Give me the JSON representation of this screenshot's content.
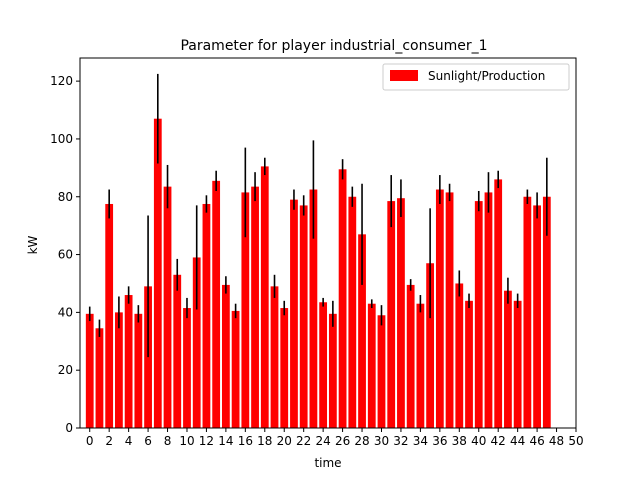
{
  "chart_data": {
    "type": "bar",
    "title": "Parameter for player industrial_consumer_1",
    "xlabel": "time",
    "ylabel": "kW",
    "xlim": [
      -1,
      50
    ],
    "ylim": [
      0,
      128
    ],
    "xticks": [
      0,
      2,
      4,
      6,
      8,
      10,
      12,
      14,
      16,
      18,
      20,
      22,
      24,
      26,
      28,
      30,
      32,
      34,
      36,
      38,
      40,
      42,
      44,
      46,
      48,
      50
    ],
    "yticks": [
      0,
      20,
      40,
      60,
      80,
      100,
      120
    ],
    "grid": false,
    "legend_position": "top-right",
    "colors": {
      "bar": "#ff0000",
      "error": "#000000"
    },
    "series": [
      {
        "name": "Sunlight/Production",
        "x": [
          0,
          1,
          2,
          3,
          4,
          5,
          6,
          7,
          8,
          9,
          10,
          11,
          12,
          13,
          14,
          15,
          16,
          17,
          18,
          19,
          20,
          21,
          22,
          23,
          24,
          25,
          26,
          27,
          28,
          29,
          30,
          31,
          32,
          33,
          34,
          35,
          36,
          37,
          38,
          39,
          40,
          41,
          42,
          43,
          44,
          45,
          46,
          47
        ],
        "values": [
          39.5,
          34.5,
          77.5,
          40,
          46,
          39.5,
          49,
          107,
          83.5,
          53,
          41.5,
          59,
          77.5,
          85.5,
          49.5,
          40.5,
          81.5,
          83.5,
          90.5,
          49,
          41.5,
          79,
          77,
          82.5,
          43.5,
          39.5,
          89.5,
          80,
          67,
          43,
          39,
          78.5,
          79.5,
          49.5,
          43,
          57,
          82.5,
          81.5,
          50,
          44,
          78.5,
          81.5,
          86,
          47.5,
          44,
          80,
          77,
          80
        ],
        "errors": [
          2.5,
          3,
          5,
          5.5,
          3,
          3,
          24.5,
          15.5,
          7.5,
          5.5,
          3.5,
          18,
          3,
          3.5,
          3,
          2.5,
          15.5,
          5,
          3,
          4,
          2.5,
          3.5,
          3.5,
          17,
          1.5,
          4.5,
          3.5,
          3.5,
          17.5,
          1.5,
          3.5,
          9,
          6.5,
          2,
          3,
          19,
          5,
          3,
          4.5,
          2.5,
          3.5,
          7,
          3,
          4.5,
          2.5,
          2.5,
          4.5,
          13.5
        ]
      }
    ]
  }
}
